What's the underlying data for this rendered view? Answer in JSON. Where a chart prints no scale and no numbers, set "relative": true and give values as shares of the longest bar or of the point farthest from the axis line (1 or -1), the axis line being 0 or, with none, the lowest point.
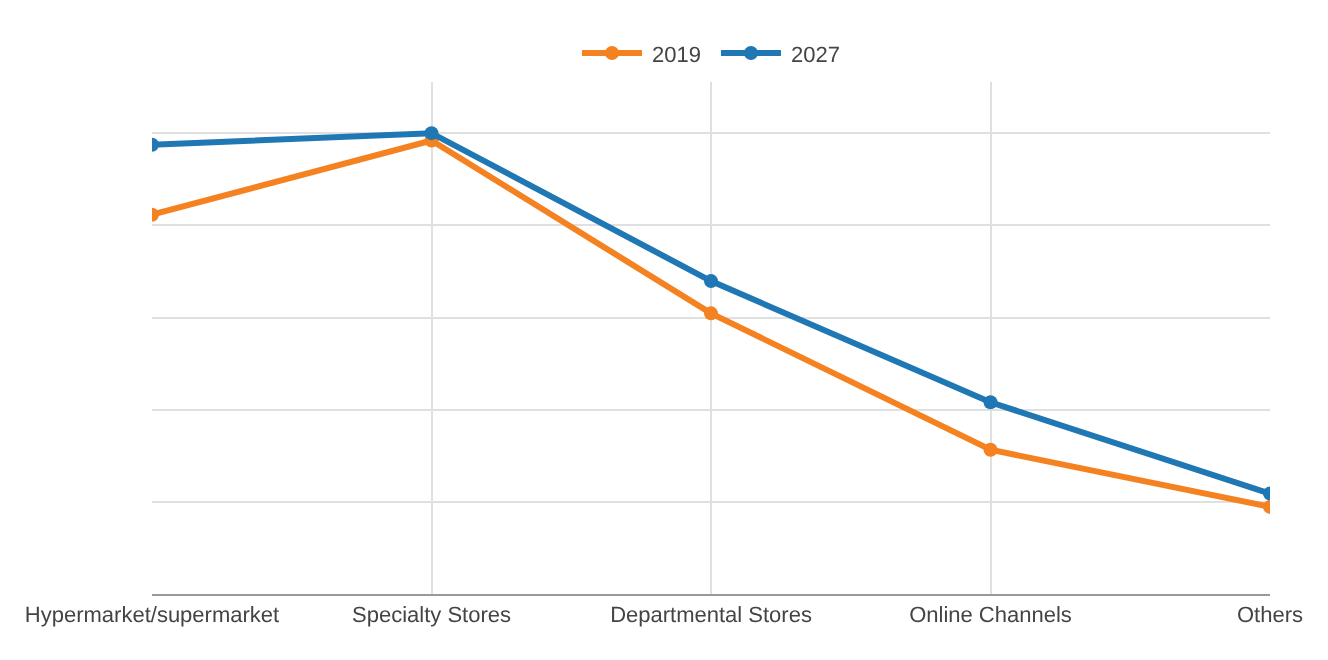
{
  "chart_data": {
    "type": "line",
    "relative": true,
    "categories": [
      "Hypermarket/supermarket",
      "Specialty Stores",
      "Departmental Stores",
      "Online Channels",
      "Others"
    ],
    "series": [
      {
        "name": "2019",
        "color": "#f58220",
        "values": [
          0.823,
          0.984,
          0.609,
          0.313,
          0.189
        ]
      },
      {
        "name": "2027",
        "color": "#1f77b4",
        "values": [
          0.975,
          1,
          0.679,
          0.416,
          0.218
        ]
      }
    ],
    "legend": "top",
    "grid": true,
    "marker": "circle",
    "line_style": "solid"
  }
}
